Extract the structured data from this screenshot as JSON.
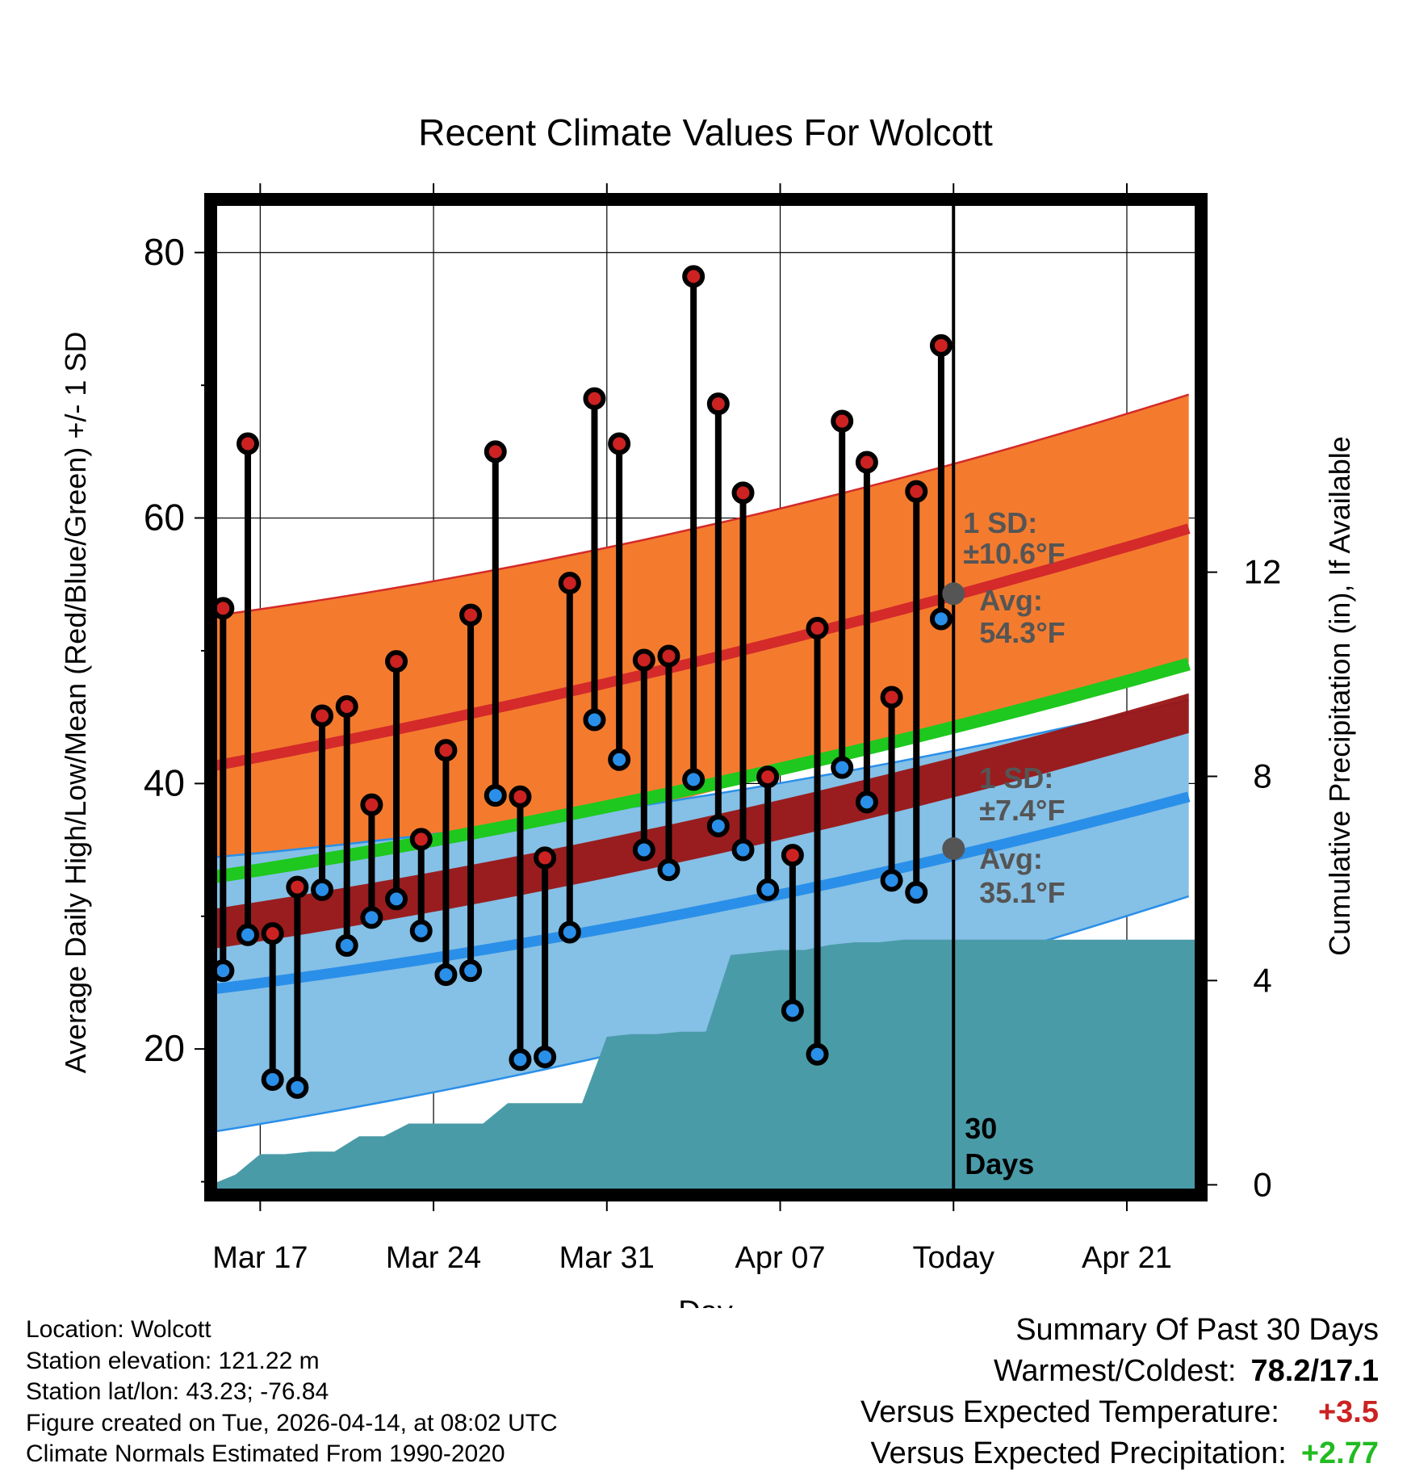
{
  "chart_data": {
    "type": "line",
    "title": "Recent Climate Values For Wolcott",
    "xlabel": "Day",
    "ylabel": "Average Daily High/Low/Mean (Red/Blue/Green) +/- 1 SD",
    "y2label": "Cumulative Precipitation (in), If Available",
    "ylim": [
      9,
      84
    ],
    "y2lim": [
      -0.2,
      19.3
    ],
    "yticks": [
      "20",
      "40",
      "60",
      "80"
    ],
    "y2ticks": [
      "0",
      "4",
      "8",
      "12"
    ],
    "xlim_days": [
      -30,
      10
    ],
    "xticks": [
      {
        "day": -28,
        "label": "Mar 17"
      },
      {
        "day": -21,
        "label": "Mar 24"
      },
      {
        "day": -14,
        "label": "Mar 31"
      },
      {
        "day": -7,
        "label": "Apr 07"
      },
      {
        "day": 0,
        "label": "Today"
      },
      {
        "day": 7,
        "label": "Apr 21"
      }
    ],
    "normals": {
      "high_mean": {
        "start": 41.0,
        "mid": 48.0,
        "end": 59.2
      },
      "high_sd_upper": {
        "start": 52.4,
        "mid": 57.4,
        "end": 69.3
      },
      "low_mean": {
        "start": 24.3,
        "mid": 28.9,
        "end": 39.0
      },
      "low_sd_upper": {
        "start": 34.3,
        "mid": 37.5,
        "end": 46.3
      },
      "low_sd_lower": {
        "start": 13.5,
        "mid": 19.4,
        "end": 31.5
      },
      "mean": {
        "start": 32.7,
        "mid": 38.3,
        "end": 49.0
      },
      "mean_band_lower": {
        "start": 30.3,
        "mid": 35.9,
        "end": 46.8
      }
    },
    "days": [
      -30,
      -29,
      -28,
      -27,
      -26,
      -25,
      -24,
      -23,
      -22,
      -21,
      -20,
      -19,
      -18,
      -17,
      -16,
      -15,
      -14,
      -13,
      -12,
      -11,
      -10,
      -9,
      -8,
      -7,
      -6,
      -5,
      -4,
      -3,
      -2,
      -1
    ],
    "series": [
      {
        "name": "Daily High",
        "color": "#cc2222",
        "values": [
          53.2,
          65.6,
          28.7,
          32.2,
          45.1,
          45.8,
          38.4,
          49.2,
          35.8,
          42.5,
          52.7,
          65.0,
          39.0,
          34.4,
          55.1,
          69.0,
          65.6,
          49.3,
          49.6,
          78.2,
          68.6,
          61.9,
          40.5,
          34.6,
          51.7,
          67.3,
          64.2,
          46.5,
          62.0,
          73.0
        ]
      },
      {
        "name": "Daily Low",
        "color": "#2a8fe8",
        "values": [
          25.9,
          28.6,
          17.7,
          17.1,
          32.0,
          27.8,
          29.9,
          31.3,
          28.9,
          25.6,
          25.9,
          39.1,
          19.2,
          19.4,
          28.8,
          44.8,
          41.8,
          35.0,
          33.5,
          40.3,
          36.8,
          35.0,
          32.0,
          22.9,
          19.6,
          41.2,
          38.6,
          32.7,
          31.8,
          52.4
        ]
      },
      {
        "name": "Cumulative Precipitation",
        "color": "#4a9ba8",
        "values": [
          0.0,
          0.2,
          0.6,
          0.6,
          0.65,
          0.65,
          0.95,
          0.95,
          1.2,
          1.2,
          1.2,
          1.2,
          1.6,
          1.6,
          1.6,
          1.6,
          2.9,
          2.95,
          2.95,
          3.0,
          3.0,
          4.5,
          4.55,
          4.6,
          4.6,
          4.7,
          4.75,
          4.75,
          4.8,
          4.8
        ]
      }
    ],
    "precip_end": 4.8,
    "annotations": {
      "high_sd_label": "1 SD:",
      "high_sd_value": "±10.6°F",
      "high_avg_label": "Avg:",
      "high_avg_value": "54.3°F",
      "low_sd_label": "1 SD:",
      "low_sd_value": "±7.4°F",
      "low_avg_label": "Avg:",
      "low_avg_value": "35.1°F",
      "today_avg_high": 54.3,
      "today_avg_low": 35.1,
      "window_number": "30",
      "window_unit": "Days"
    }
  },
  "footer": {
    "location": "Location: Wolcott",
    "elevation": "Station elevation: 121.22 m",
    "latlon": "Station lat/lon: 43.23; -76.84",
    "created": "Figure created on Tue, 2026-04-14, at 08:02 UTC",
    "normals": "Climate Normals Estimated From 1990-2020"
  },
  "summary": {
    "title": "Summary Of Past 30 Days",
    "warmest_label": "Warmest/Coldest:",
    "warmest_value": "78.2/17.1",
    "temp_label": "Versus Expected Temperature:",
    "temp_value": "+3.5",
    "precip_label": "Versus Expected Precipitation:",
    "precip_value": "+2.77",
    "colors": {
      "temp": "#cc2222",
      "precip": "#22bb22"
    }
  }
}
